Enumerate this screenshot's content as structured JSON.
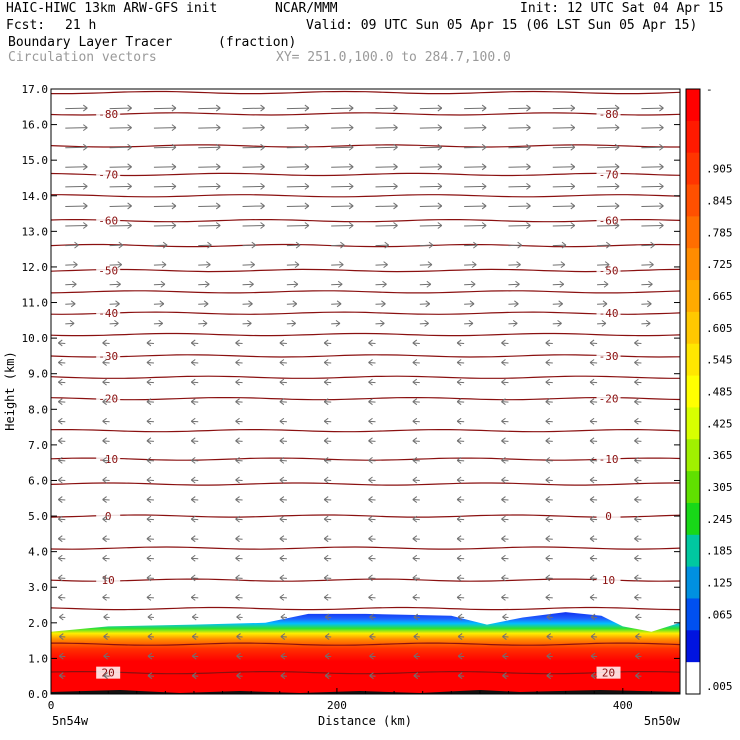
{
  "header": {
    "model": "HAIC-HIWC 13km ARW-GFS init",
    "org": "NCAR/MMM",
    "init": "Init: 12 UTC Sat 04 Apr 15",
    "fcst_label": "Fcst:",
    "fcst_value": "21 h",
    "valid": "Valid: 09 UTC Sun 05 Apr 15 (06 LST Sun 05 Apr 15)",
    "field": "Boundary Layer Tracer",
    "units": "(fraction)",
    "vectors": "Circulation vectors",
    "xy": "XY= 251.0,100.0 to 284.7,100.0"
  },
  "chart_data": {
    "type": "heatmap",
    "title": "Boundary Layer Tracer",
    "units": "(fraction)",
    "xlabel": "Distance (km)",
    "ylabel": "Height (km)",
    "xlim": [
      0,
      440
    ],
    "ylim": [
      0,
      17
    ],
    "x_ticks": [
      0,
      200,
      400
    ],
    "y_ticks": [
      0.0,
      1.0,
      2.0,
      3.0,
      4.0,
      5.0,
      6.0,
      7.0,
      8.0,
      9.0,
      10.0,
      11.0,
      12.0,
      13.0,
      14.0,
      15.0,
      16.0,
      17.0
    ],
    "x_endpoint_labels": {
      "left": "5n54w",
      "right": "5n50w"
    },
    "colorbar_labels": [
      "-",
      ".905",
      ".845",
      ".785",
      ".725",
      ".665",
      ".605",
      ".545",
      ".485",
      ".425",
      ".365",
      ".305",
      ".245",
      ".185",
      ".125",
      ".065",
      ".005"
    ],
    "colorbar_colors": [
      "#ff0000",
      "#ff1a00",
      "#ff3500",
      "#ff5000",
      "#ff6e00",
      "#ff8c00",
      "#ffaa00",
      "#ffc800",
      "#ffe600",
      "#ffff00",
      "#d8ff00",
      "#a0f000",
      "#60e000",
      "#18d818",
      "#00c8a0",
      "#0090e0",
      "#0050f0",
      "#0014e0",
      "#ffffff"
    ],
    "boundary_layer_top_km": [
      [
        0,
        1.75
      ],
      [
        40,
        1.9
      ],
      [
        100,
        1.95
      ],
      [
        150,
        2.0
      ],
      [
        180,
        2.25
      ],
      [
        220,
        2.25
      ],
      [
        280,
        2.2
      ],
      [
        305,
        1.95
      ],
      [
        330,
        2.15
      ],
      [
        360,
        2.3
      ],
      [
        385,
        2.2
      ],
      [
        400,
        1.9
      ],
      [
        420,
        1.75
      ],
      [
        440,
        2.0
      ]
    ],
    "temperature_contours": [
      {
        "label": "-80",
        "height_km": 16.3
      },
      {
        "label": "-70",
        "height_km": 14.6
      },
      {
        "label": "-60",
        "height_km": 13.3
      },
      {
        "label": "-50",
        "height_km": 11.9
      },
      {
        "label": "-40",
        "height_km": 10.7
      },
      {
        "label": "-30",
        "height_km": 9.5
      },
      {
        "label": "-20",
        "height_km": 8.3
      },
      {
        "label": "-10",
        "height_km": 6.6
      },
      {
        "label": "0",
        "height_km": 5.0
      },
      {
        "label": "10",
        "height_km": 3.2
      },
      {
        "label": "20",
        "height_km": 0.6
      }
    ],
    "unlabeled_contour_heights_km": [
      16.9,
      15.4,
      14.0,
      12.6,
      11.3,
      10.1,
      8.9,
      7.4,
      5.9,
      4.1,
      2.4,
      1.4
    ]
  }
}
